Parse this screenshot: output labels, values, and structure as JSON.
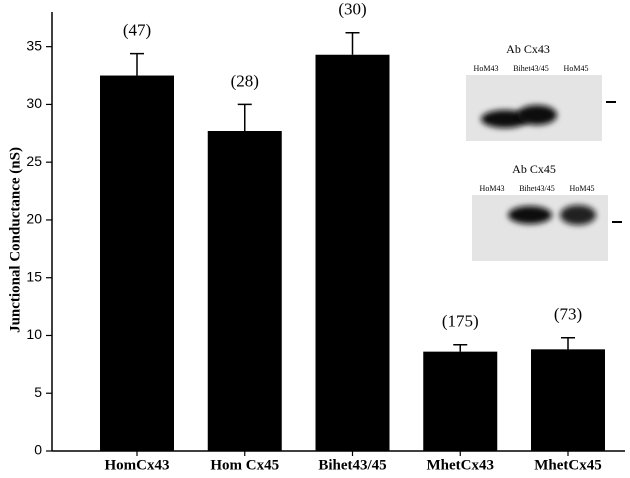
{
  "chart_data": {
    "type": "bar",
    "y_label": "Junctional Conductance (nS)",
    "categories": [
      "HomCx43",
      "Hom Cx45",
      "Bihet43/45",
      "MhetCx43",
      "MhetCx45"
    ],
    "values": [
      32.5,
      27.7,
      34.3,
      8.6,
      8.8
    ],
    "errors": [
      1.9,
      2.3,
      1.9,
      0.6,
      1.0
    ],
    "annotations": [
      "(47)",
      "(28)",
      "(30)",
      "(175)",
      "(73)"
    ],
    "color": "#000000",
    "ylim": [
      0,
      38
    ],
    "yticks": [
      0,
      5,
      10,
      15,
      20,
      25,
      30,
      35
    ],
    "inset": [
      {
        "title": "Ab Cx43",
        "lanes": [
          "HoM43",
          "Bihet43/45",
          "HoM45"
        ]
      },
      {
        "title": "Ab Cx45",
        "lanes": [
          "HoM43",
          "Bihet43/45",
          "HoM45"
        ]
      }
    ]
  }
}
